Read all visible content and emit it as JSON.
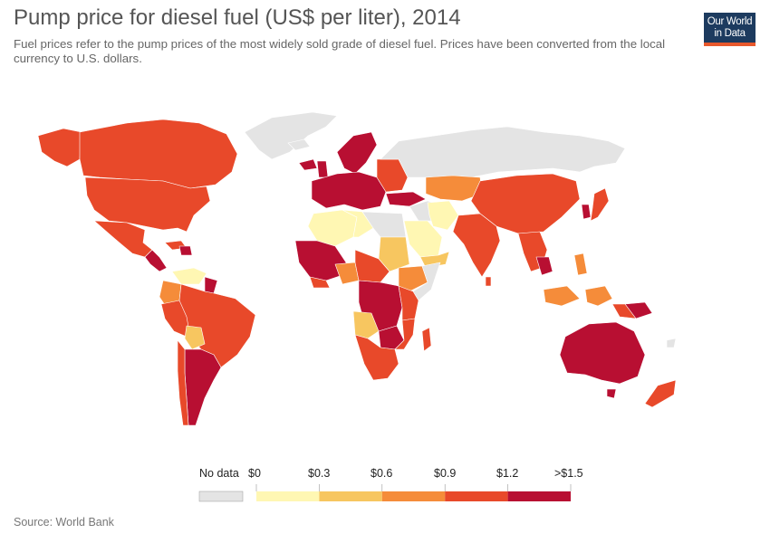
{
  "header": {
    "title": "Pump price for diesel fuel (US$ per liter), 2014",
    "subtitle": "Fuel prices refer to the pump prices of the most widely sold grade of diesel fuel. Prices have been converted from the local currency to U.S. dollars."
  },
  "logo": {
    "line1": "Our World",
    "line2": "in Data"
  },
  "legend": {
    "nodata_label": "No data",
    "tick_labels": [
      "$0",
      "$0.3",
      "$0.6",
      "$0.9",
      "$1.2",
      ">$1.5"
    ],
    "colors": {
      "nodata": "#e4e4e4",
      "bins": [
        "#fff7b3",
        "#f7c660",
        "#f58c3a",
        "#e8492a",
        "#b80f32"
      ]
    }
  },
  "footer": {
    "source": "Source: World Bank"
  }
}
